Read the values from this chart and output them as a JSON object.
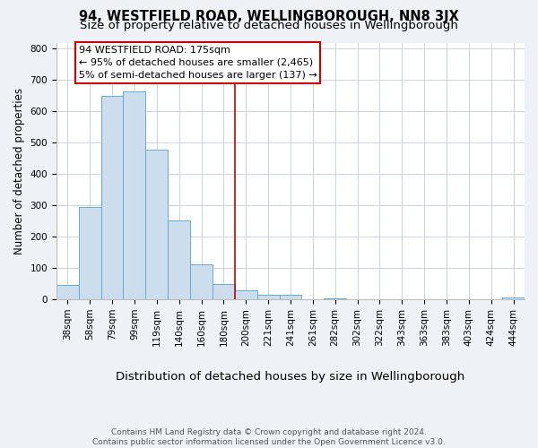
{
  "title": "94, WESTFIELD ROAD, WELLINGBOROUGH, NN8 3JX",
  "subtitle": "Size of property relative to detached houses in Wellingborough",
  "xlabel": "Distribution of detached houses by size in Wellingborough",
  "ylabel": "Number of detached properties",
  "bar_labels": [
    "38sqm",
    "58sqm",
    "79sqm",
    "99sqm",
    "119sqm",
    "140sqm",
    "160sqm",
    "180sqm",
    "200sqm",
    "221sqm",
    "241sqm",
    "261sqm",
    "282sqm",
    "302sqm",
    "322sqm",
    "343sqm",
    "363sqm",
    "383sqm",
    "403sqm",
    "424sqm",
    "444sqm"
  ],
  "bar_values": [
    47,
    295,
    650,
    665,
    478,
    253,
    113,
    48,
    29,
    15,
    14,
    1,
    4,
    1,
    1,
    2,
    0,
    0,
    0,
    0,
    7
  ],
  "bar_color": "#ccdded",
  "bar_edge_color": "#6aaad0",
  "vline_x": 7.5,
  "vline_color": "#cc0000",
  "annotation_text_line1": "94 WESTFIELD ROAD: 175sqm",
  "annotation_text_line2": "← 95% of detached houses are smaller (2,465)",
  "annotation_text_line3": "5% of semi-detached houses are larger (137) →",
  "ylim": [
    0,
    820
  ],
  "footnote": "Contains HM Land Registry data © Crown copyright and database right 2024.\nContains public sector information licensed under the Open Government Licence v3.0.",
  "bg_color": "#eef2f7",
  "plot_bg_color": "#ffffff",
  "title_fontsize": 10.5,
  "subtitle_fontsize": 9.5,
  "xlabel_fontsize": 9.5,
  "ylabel_fontsize": 8.5,
  "tick_fontsize": 7.5,
  "annot_fontsize": 8,
  "footnote_fontsize": 6.5
}
